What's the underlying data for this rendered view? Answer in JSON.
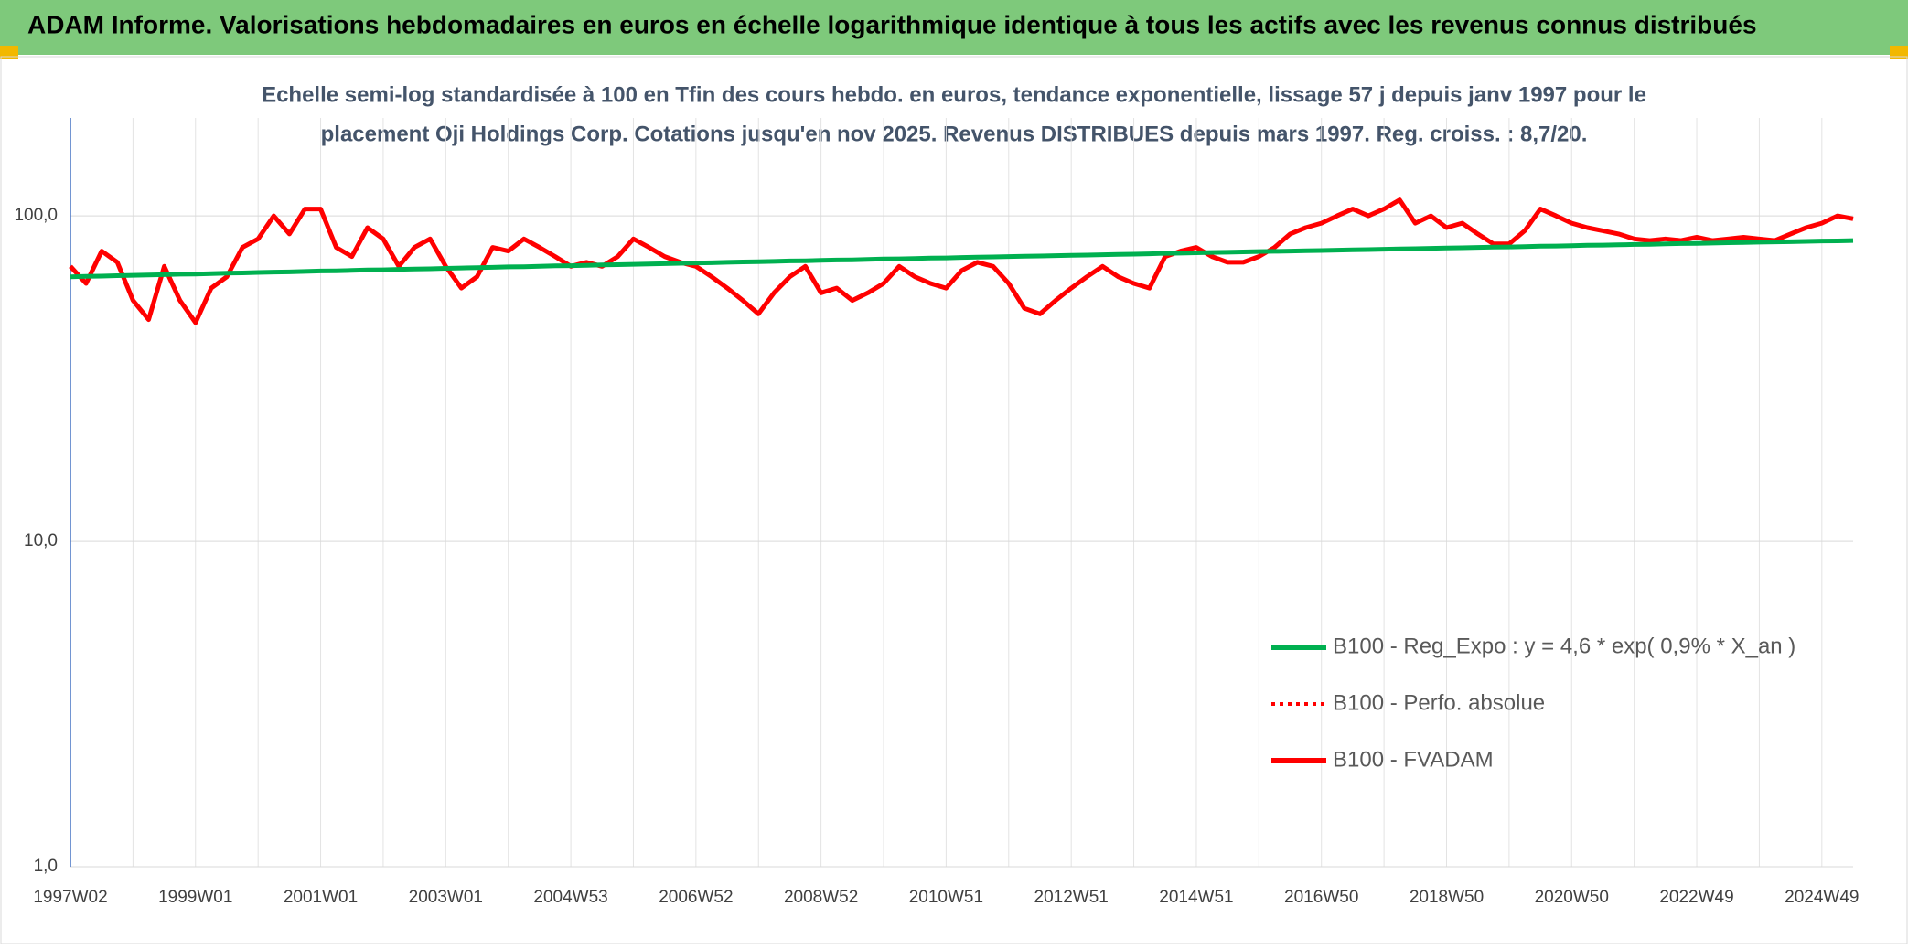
{
  "chart_data": {
    "type": "line",
    "title": "ADAM Informe. Valorisations hebdomadaires en euros en échelle logarithmique identique à tous les actifs avec les revenus connus distribués",
    "subtitle": [
      "Echelle semi-log standardisée à 100 en Tfin des cours hebdo. en euros, tendance exponentielle, lissage 57 j depuis janv 1997 pour le",
      "placement Oji Holdings Corp. Cotations jusqu'en nov 2025. Revenus DISTRIBUES depuis mars 1997. Reg. croiss. : 8,7/20."
    ],
    "categories": [
      "1997W02",
      null,
      null,
      null,
      null,
      null,
      null,
      null,
      "1999W01",
      null,
      null,
      null,
      null,
      null,
      null,
      null,
      "2001W01",
      null,
      null,
      null,
      null,
      null,
      null,
      null,
      "2003W01",
      null,
      null,
      null,
      null,
      null,
      null,
      null,
      "2004W53",
      null,
      null,
      null,
      null,
      null,
      null,
      null,
      "2006W52",
      null,
      null,
      null,
      null,
      null,
      null,
      null,
      "2008W52",
      null,
      null,
      null,
      null,
      null,
      null,
      null,
      "2010W51",
      null,
      null,
      null,
      null,
      null,
      null,
      null,
      "2012W51",
      null,
      null,
      null,
      null,
      null,
      null,
      null,
      "2014W51",
      null,
      null,
      null,
      null,
      null,
      null,
      null,
      "2016W50",
      null,
      null,
      null,
      null,
      null,
      null,
      null,
      "2018W50",
      null,
      null,
      null,
      null,
      null,
      null,
      null,
      "2020W50",
      null,
      null,
      null,
      null,
      null,
      null,
      null,
      "2022W49",
      null,
      null,
      null,
      null,
      null,
      null,
      null,
      "2024W49",
      null,
      null
    ],
    "series": [
      {
        "name": "B100 - Reg_Expo : y = 4,6 * exp( 0,9% *  X_an )",
        "color": "#00b050",
        "style": "solid",
        "values": [
          65.0,
          65.2,
          65.3,
          65.5,
          65.7,
          65.8,
          66.0,
          66.2,
          66.3,
          66.5,
          66.7,
          66.8,
          67.0,
          67.2,
          67.3,
          67.5,
          67.7,
          67.8,
          68.0,
          68.2,
          68.3,
          68.5,
          68.7,
          68.8,
          69.0,
          69.2,
          69.3,
          69.5,
          69.7,
          69.8,
          70.0,
          70.2,
          70.3,
          70.5,
          70.7,
          70.8,
          71.0,
          71.2,
          71.3,
          71.5,
          71.7,
          71.8,
          72.0,
          72.2,
          72.3,
          72.5,
          72.7,
          72.8,
          73.0,
          73.2,
          73.3,
          73.5,
          73.7,
          73.8,
          74.0,
          74.2,
          74.3,
          74.5,
          74.7,
          74.8,
          75.0,
          75.2,
          75.3,
          75.5,
          75.7,
          75.8,
          76.0,
          76.2,
          76.3,
          76.5,
          76.7,
          76.8,
          77.0,
          77.2,
          77.3,
          77.5,
          77.7,
          77.8,
          78.0,
          78.2,
          78.3,
          78.5,
          78.7,
          78.8,
          79.0,
          79.2,
          79.3,
          79.5,
          79.7,
          79.8,
          80.0,
          80.2,
          80.3,
          80.5,
          80.7,
          80.8,
          81.0,
          81.2,
          81.3,
          81.5,
          81.7,
          81.8,
          82.0,
          82.2,
          82.3,
          82.5,
          82.7,
          82.8,
          83.0,
          83.2,
          83.3,
          83.5,
          83.7,
          83.8,
          84.0
        ]
      },
      {
        "name": "B100 - Perfo. absolue",
        "color": "#ff0000",
        "style": "dotted",
        "values": [
          70,
          62,
          78,
          72,
          55,
          48,
          70,
          55,
          47,
          60,
          65,
          80,
          85,
          100,
          88,
          105,
          105,
          80,
          75,
          92,
          85,
          70,
          80,
          85,
          70,
          60,
          65,
          80,
          78,
          85,
          80,
          75,
          70,
          72,
          70,
          75,
          85,
          80,
          75,
          72,
          70,
          65,
          60,
          55,
          50,
          58,
          65,
          70,
          58,
          60,
          55,
          58,
          62,
          70,
          65,
          62,
          60,
          68,
          72,
          70,
          62,
          52,
          50,
          55,
          60,
          65,
          70,
          65,
          62,
          60,
          75,
          78,
          80,
          75,
          72,
          72,
          75,
          80,
          88,
          92,
          95,
          100,
          105,
          100,
          105,
          112,
          95,
          100,
          92,
          95,
          88,
          82,
          82,
          90,
          105,
          100,
          95,
          92,
          90,
          88,
          85,
          84,
          85,
          84,
          86,
          84,
          85,
          86,
          85,
          84,
          88,
          92,
          95,
          100,
          98
        ]
      },
      {
        "name": "B100 - FVADAM",
        "color": "#ff0000",
        "style": "solid",
        "values": [
          70,
          62,
          78,
          72,
          55,
          48,
          70,
          55,
          47,
          60,
          65,
          80,
          85,
          100,
          88,
          105,
          105,
          80,
          75,
          92,
          85,
          70,
          80,
          85,
          70,
          60,
          65,
          80,
          78,
          85,
          80,
          75,
          70,
          72,
          70,
          75,
          85,
          80,
          75,
          72,
          70,
          65,
          60,
          55,
          50,
          58,
          65,
          70,
          58,
          60,
          55,
          58,
          62,
          70,
          65,
          62,
          60,
          68,
          72,
          70,
          62,
          52,
          50,
          55,
          60,
          65,
          70,
          65,
          62,
          60,
          75,
          78,
          80,
          75,
          72,
          72,
          75,
          80,
          88,
          92,
          95,
          100,
          105,
          100,
          105,
          112,
          95,
          100,
          92,
          95,
          88,
          82,
          82,
          90,
          105,
          100,
          95,
          92,
          90,
          88,
          85,
          84,
          85,
          84,
          86,
          84,
          85,
          86,
          85,
          84,
          88,
          92,
          95,
          100,
          98
        ]
      }
    ],
    "log_scale": true,
    "ylim": [
      1,
      200
    ],
    "yticks": [
      {
        "value": 1,
        "label": "1,0"
      },
      {
        "value": 10,
        "label": "10,0"
      },
      {
        "value": 100,
        "label": "100,0"
      }
    ],
    "grid": true
  }
}
